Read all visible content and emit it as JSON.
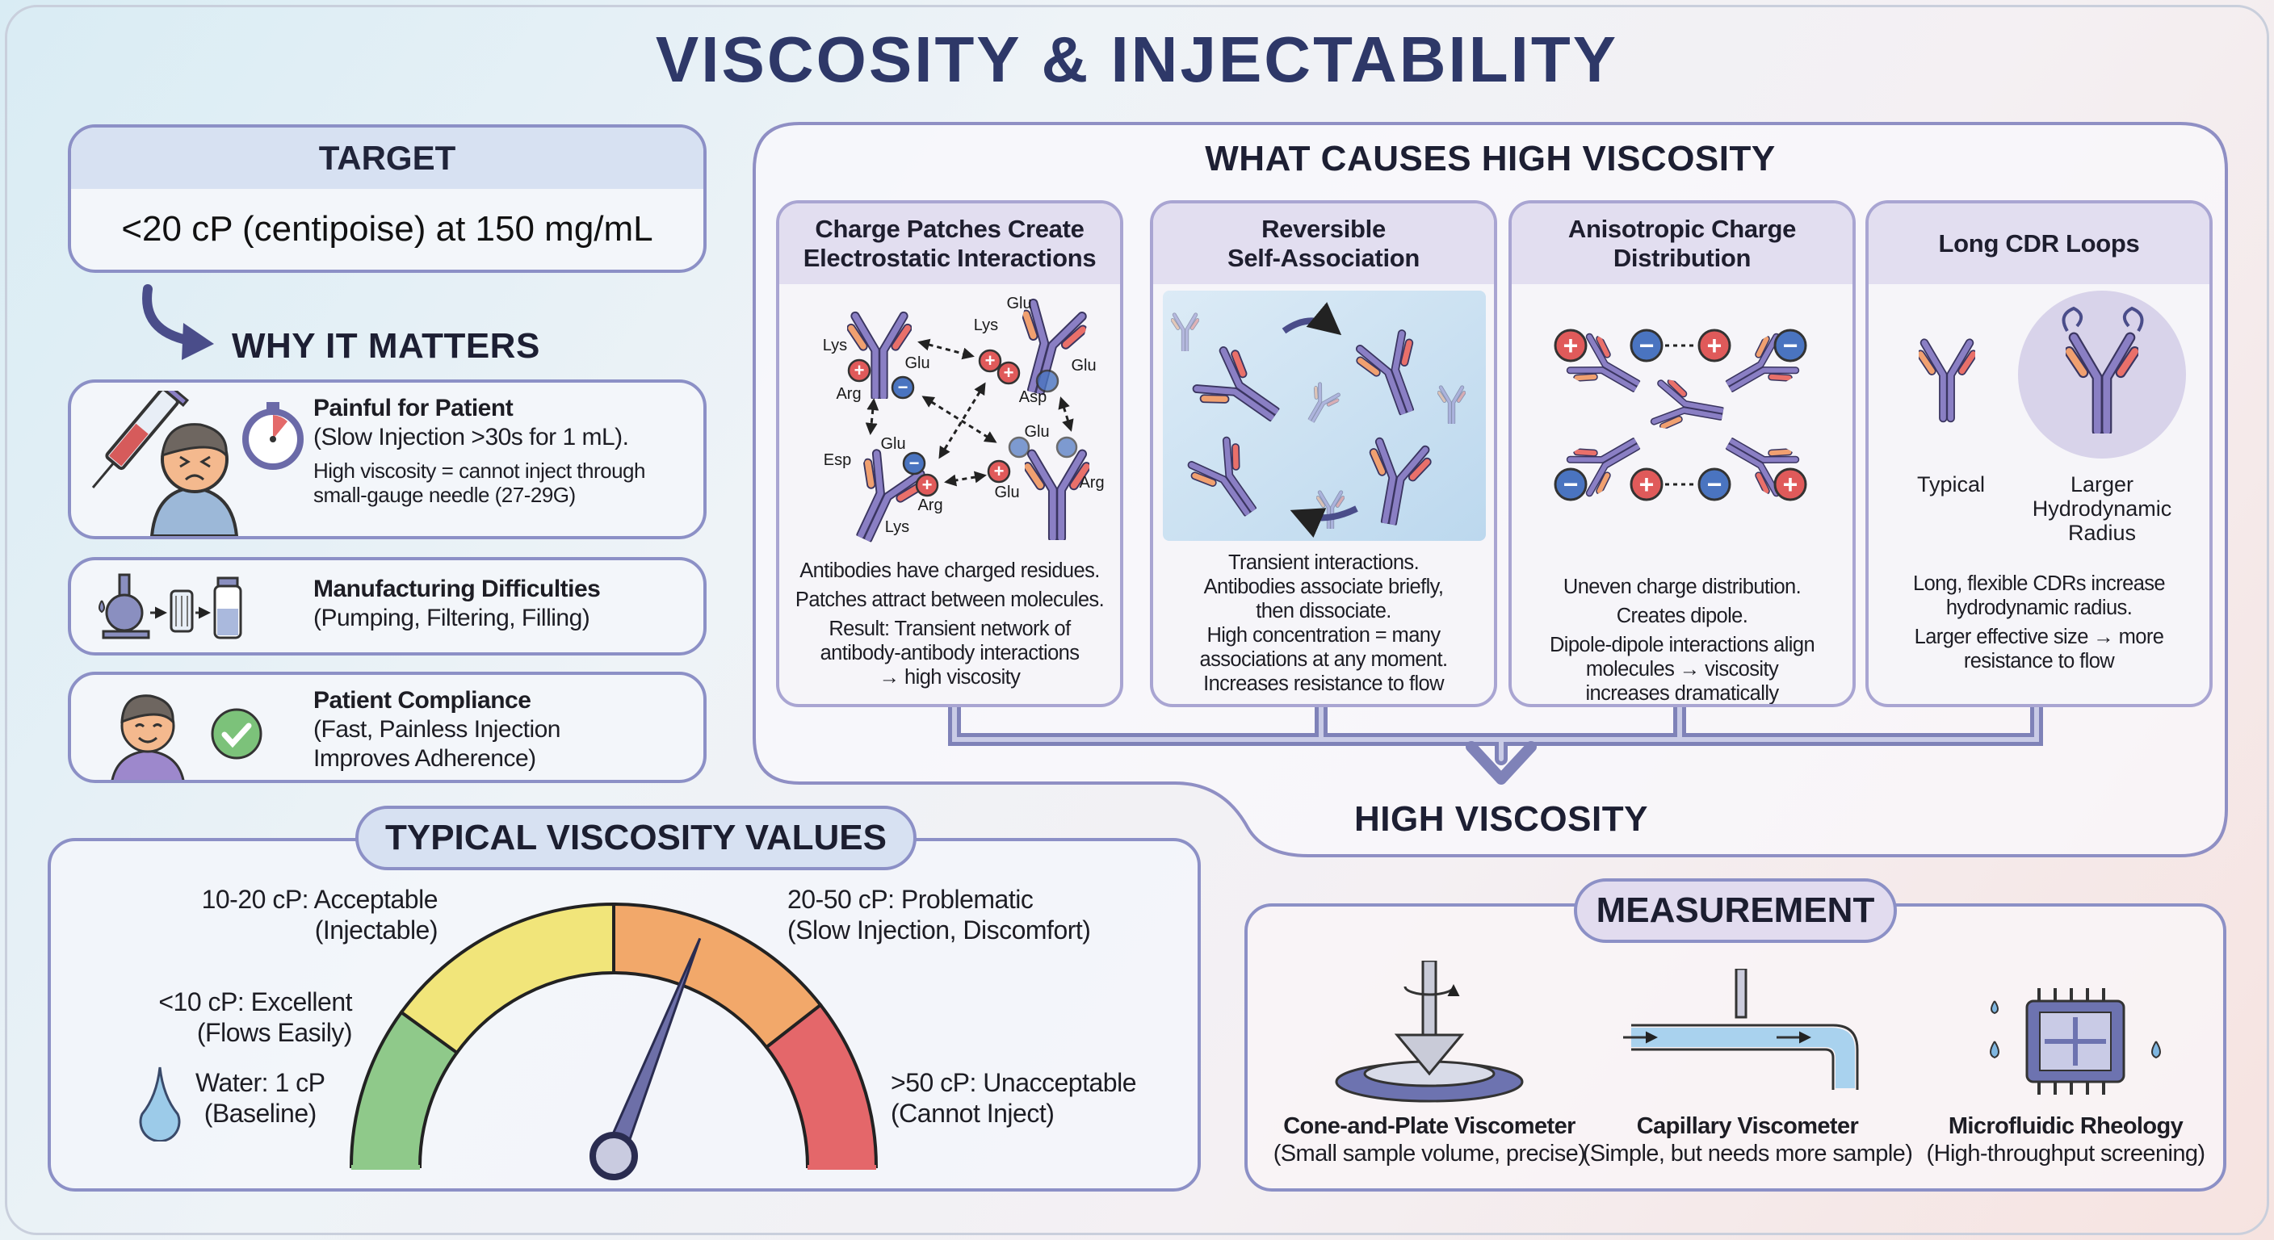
{
  "title": "VISCOSITY & INJECTABILITY",
  "target": {
    "heading": "TARGET",
    "value": "<20 cP (centipoise) at 150 mg/mL"
  },
  "why": {
    "heading": "WHY IT MATTERS",
    "items": [
      {
        "title": "Painful for Patient",
        "lines": [
          "(Slow Injection >30s for 1 mL)."
        ],
        "notes": [
          "High viscosity = cannot inject through",
          "small-gauge needle (27-29G)"
        ],
        "icon": "patient-injection-stopwatch-icon"
      },
      {
        "title": "Manufacturing Difficulties",
        "lines": [
          "(Pumping, Filtering, Filling)"
        ],
        "icon": "pump-filter-vial-icon"
      },
      {
        "title": "Patient Compliance",
        "lines": [
          "(Fast, Painless Injection",
          "Improves Adherence)"
        ],
        "icon": "happy-patient-check-icon"
      }
    ]
  },
  "causes": {
    "heading": "WHAT CAUSES HIGH VISCOSITY",
    "result": "HIGH VISCOSITY",
    "cards": [
      {
        "title": [
          "Charge Patches Create",
          "Electrostatic Interactions"
        ],
        "body": [
          "Antibodies have charged residues.",
          "Patches attract between molecules.",
          "Result: Transient network of",
          "antibody-antibody interactions",
          "→ high viscosity"
        ],
        "residues": [
          "Lys",
          "Arg",
          "Glu",
          "Glu",
          "Lys",
          "Glu",
          "Asp",
          "Esp",
          "Glu",
          "Arg",
          "Lys",
          "Glu",
          "Glu",
          "Arg"
        ]
      },
      {
        "title": [
          "Reversible",
          "Self-Association"
        ],
        "body": [
          "Transient interactions.",
          "Antibodies associate briefly,",
          "then dissociate.",
          "High concentration = many",
          "associations at any moment.",
          "Increases resistance to flow"
        ]
      },
      {
        "title": [
          "Anisotropic Charge",
          "Distribution"
        ],
        "body": [
          "Uneven charge distribution.",
          "Creates dipole.",
          "Dipole-dipole interactions align",
          "molecules → viscosity",
          "increases dramatically"
        ]
      },
      {
        "title": [
          "Long CDR Loops"
        ],
        "typical": "Typical",
        "larger": [
          "Larger",
          "Hydrodynamic",
          "Radius"
        ],
        "body": [
          "Long, flexible CDRs increase",
          "hydrodynamic radius.",
          "Larger effective size → more",
          "resistance to flow"
        ]
      }
    ]
  },
  "gauge": {
    "heading": "TYPICAL VISCOSITY VALUES",
    "zones": [
      {
        "label": "<10 cP: Excellent",
        "sub": "(Flows Easily)",
        "color": "#8fc98a"
      },
      {
        "label": "10-20 cP: Acceptable",
        "sub": "(Injectable)",
        "color": "#f1e57a"
      },
      {
        "label": "20-50 cP: Problematic",
        "sub": "(Slow Injection, Discomfort)",
        "color": "#f2a86a"
      },
      {
        "label": ">50 cP: Unacceptable",
        "sub": "(Cannot Inject)",
        "color": "#e4676a"
      }
    ],
    "water": {
      "label": "Water: 1 cP",
      "sub": "(Baseline)"
    },
    "needle_level": 0.62
  },
  "measurement": {
    "heading": "MEASUREMENT",
    "items": [
      {
        "name": "Cone-and-Plate Viscometer",
        "note": "(Small sample volume, precise)"
      },
      {
        "name": "Capillary Viscometer",
        "note": "(Simple, but needs more sample)"
      },
      {
        "name": "Microfluidic Rheology",
        "note": "(High-throughput screening)"
      }
    ]
  },
  "colors": {
    "title": "#2e3868",
    "border": "#8c90c6",
    "plus": "#e05a5a",
    "minus": "#4a74c0",
    "antibody": "#8a7fc4"
  }
}
